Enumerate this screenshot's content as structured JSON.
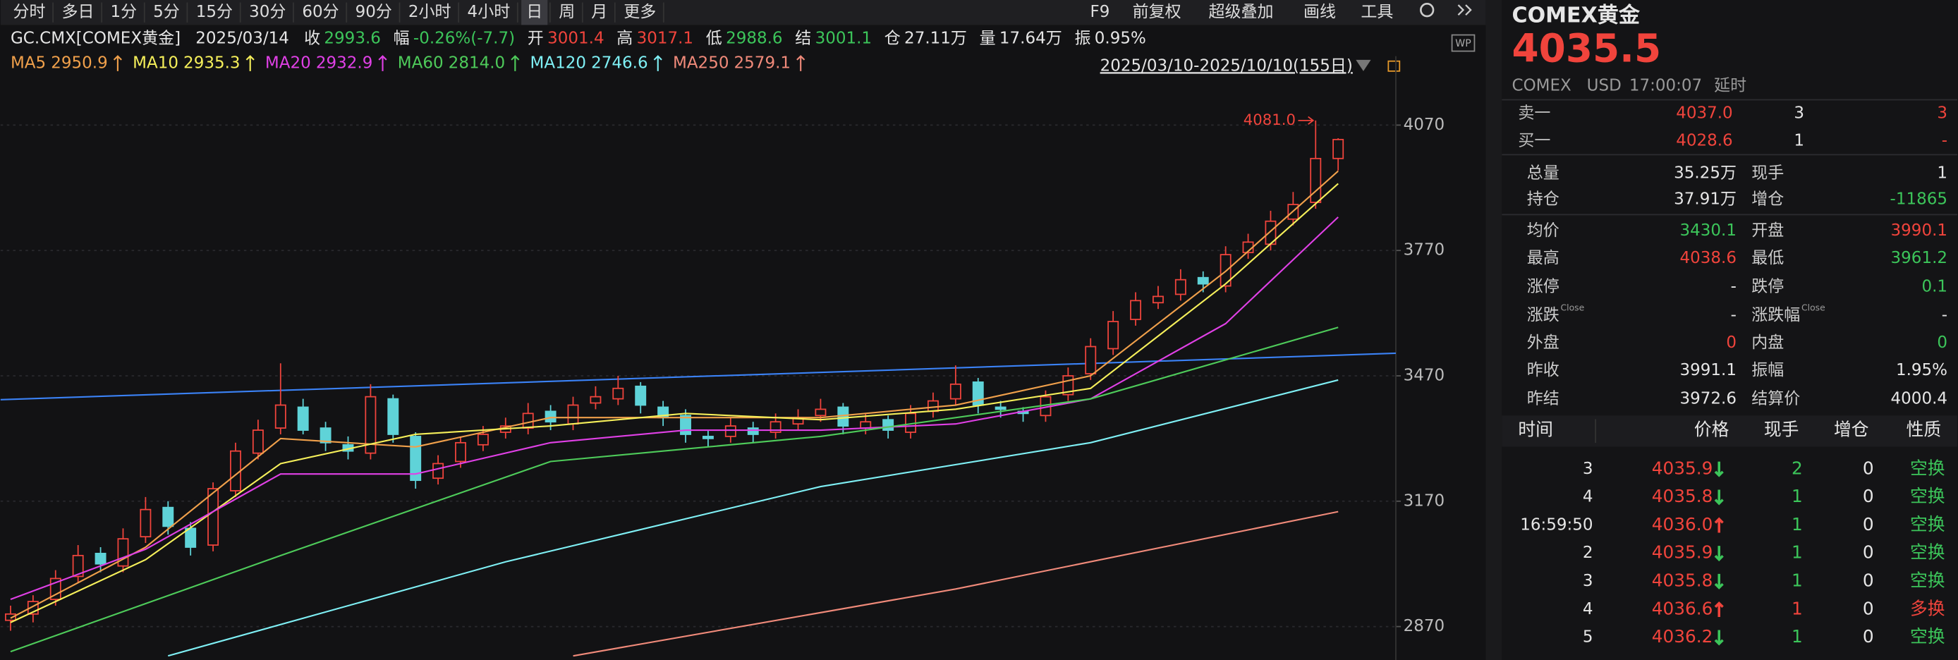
{
  "toolbar": [
    "分时",
    "多日",
    "1分",
    "5分",
    "15分",
    "30分",
    "60分",
    "90分",
    "2小时",
    "4小时",
    "日",
    "周",
    "月",
    "更多"
  ],
  "toolbar_active": "日",
  "right_tools": [
    "F9",
    "前复权",
    "超级叠加",
    "画线",
    "工具"
  ],
  "info": {
    "symbol": "GC.CMX[COMEX黄金]",
    "date": "2025/03/14",
    "fields": [
      {
        "label": "收",
        "value": "2993.6",
        "color": "#3cc55a"
      },
      {
        "label": "幅",
        "value": "-0.26%(-7.7)",
        "color": "#3cc55a"
      },
      {
        "label": "开",
        "value": "3001.4",
        "color": "#f0443c"
      },
      {
        "label": "高",
        "value": "3017.1",
        "color": "#f0443c"
      },
      {
        "label": "低",
        "value": "2988.6",
        "color": "#3cc55a"
      },
      {
        "label": "结",
        "value": "3001.1",
        "color": "#3cc55a"
      },
      {
        "label": "仓",
        "value": "27.11万",
        "color": "#e6e6e6"
      },
      {
        "label": "量",
        "value": "17.64万",
        "color": "#e6e6e6"
      },
      {
        "label": "振",
        "value": "0.95%",
        "color": "#e6e6e6"
      }
    ]
  },
  "ma_legend": [
    {
      "name": "MA5",
      "value": "2950.9",
      "color": "#f0a04b"
    },
    {
      "name": "MA10",
      "value": "2935.3",
      "color": "#f5ef5a"
    },
    {
      "name": "MA20",
      "value": "2932.9",
      "color": "#e040e6"
    },
    {
      "name": "MA60",
      "value": "2814.0",
      "color": "#4ecb5a"
    },
    {
      "name": "MA120",
      "value": "2746.6",
      "color": "#7ff0f5"
    },
    {
      "name": "MA250",
      "value": "2579.1",
      "color": "#f08a7a"
    }
  ],
  "range_label": "2025/03/10-2025/10/10(155日)",
  "chart_data": {
    "type": "candlestick",
    "open": [
      2885,
      2900,
      2935,
      2990,
      3045,
      3015,
      3085,
      3155,
      3105,
      3065,
      3195,
      3285,
      3345,
      3395,
      3345,
      3305,
      3285,
      3415,
      3325,
      3225,
      3265,
      3305,
      3335,
      3345,
      3385,
      3355,
      3405,
      3415,
      3445,
      3395,
      3375,
      3325,
      3325,
      3345,
      3335,
      3355,
      3375,
      3395,
      3345,
      3365,
      3335,
      3385,
      3415,
      3455,
      3395,
      3385,
      3375,
      3425,
      3475,
      3535,
      3605,
      3645,
      3665,
      3705,
      3685,
      3765,
      3785,
      3845,
      3885,
      3990.1
    ],
    "high": [
      2920,
      2945,
      3005,
      3065,
      3060,
      3105,
      3180,
      3170,
      3120,
      3215,
      3310,
      3365,
      3500,
      3415,
      3360,
      3325,
      3450,
      3425,
      3335,
      3280,
      3325,
      3350,
      3370,
      3405,
      3400,
      3420,
      3445,
      3470,
      3455,
      3410,
      3390,
      3340,
      3370,
      3360,
      3380,
      3390,
      3415,
      3405,
      3380,
      3375,
      3400,
      3430,
      3495,
      3465,
      3410,
      3395,
      3435,
      3490,
      3560,
      3625,
      3670,
      3685,
      3725,
      3720,
      3780,
      3810,
      3865,
      3910,
      4081,
      4038.6
    ],
    "low": [
      2860,
      2880,
      2920,
      2975,
      3000,
      3000,
      3070,
      3090,
      3040,
      3050,
      3180,
      3270,
      3330,
      3330,
      3290,
      3270,
      3270,
      3310,
      3200,
      3210,
      3250,
      3290,
      3320,
      3330,
      3340,
      3340,
      3390,
      3400,
      3380,
      3350,
      3310,
      3300,
      3310,
      3310,
      3320,
      3340,
      3360,
      3330,
      3330,
      3320,
      3320,
      3370,
      3400,
      3380,
      3370,
      3360,
      3360,
      3410,
      3460,
      3520,
      3590,
      3630,
      3650,
      3670,
      3670,
      3750,
      3770,
      3830,
      3870,
      3961.2
    ],
    "close": [
      2900,
      2930,
      2985,
      3040,
      3020,
      3080,
      3150,
      3110,
      3060,
      3200,
      3290,
      3340,
      3400,
      3340,
      3310,
      3290,
      3420,
      3330,
      3220,
      3260,
      3310,
      3330,
      3350,
      3380,
      3360,
      3400,
      3420,
      3440,
      3400,
      3370,
      3330,
      3320,
      3350,
      3330,
      3360,
      3370,
      3390,
      3350,
      3360,
      3340,
      3380,
      3410,
      3450,
      3400,
      3390,
      3380,
      3420,
      3470,
      3540,
      3600,
      3650,
      3660,
      3700,
      3690,
      3760,
      3790,
      3840,
      3880,
      3990,
      4035.5
    ],
    "up_color": "#f0443c",
    "down_color": "#5fd3d8",
    "ylim": [
      2790,
      4235
    ],
    "yticks": [
      2870,
      3170,
      3470,
      3770,
      4070
    ],
    "grid": true,
    "high_label": "4081.0",
    "high_index": 58,
    "trendline": {
      "color": "#3b82f6",
      "values": [
        3413,
        3524
      ]
    },
    "series": [
      {
        "name": "MA5",
        "color": "#f0a04b",
        "x": [
          0,
          6,
          12,
          18,
          24,
          30,
          36,
          42,
          48,
          54,
          59
        ],
        "values": [
          2890,
          3060,
          3320,
          3300,
          3370,
          3370,
          3370,
          3400,
          3470,
          3720,
          3960
        ]
      },
      {
        "name": "MA10",
        "color": "#f5ef5a",
        "x": [
          0,
          6,
          12,
          18,
          24,
          30,
          36,
          42,
          48,
          54,
          59
        ],
        "values": [
          2880,
          3030,
          3260,
          3330,
          3350,
          3380,
          3365,
          3390,
          3440,
          3690,
          3930
        ]
      },
      {
        "name": "MA20",
        "color": "#e040e6",
        "x": [
          0,
          6,
          12,
          18,
          24,
          30,
          36,
          42,
          48,
          54,
          59
        ],
        "values": [
          2935,
          3055,
          3235,
          3235,
          3310,
          3340,
          3340,
          3355,
          3415,
          3595,
          3850
        ]
      },
      {
        "name": "MA60",
        "color": "#4ecb5a",
        "x": [
          0,
          12,
          24,
          36,
          48,
          59
        ],
        "values": [
          2810,
          3040,
          3265,
          3325,
          3415,
          3586
        ]
      },
      {
        "name": "MA120",
        "color": "#7ff0f5",
        "x": [
          7,
          22,
          36,
          48,
          59
        ],
        "values": [
          2800,
          3025,
          3205,
          3310,
          3460
        ]
      },
      {
        "name": "MA250",
        "color": "#f08a7a",
        "x": [
          25,
          42,
          59
        ],
        "values": [
          2800,
          2960,
          3145
        ]
      }
    ]
  },
  "panel": {
    "title": "COMEX黄金",
    "price": "4035.5",
    "sub": [
      "COMEX",
      "USD",
      "17:00:07",
      "延时"
    ],
    "book": [
      {
        "label": "卖一",
        "price": "4037.0",
        "vol": "3",
        "chg": "3"
      },
      {
        "label": "买一",
        "price": "4028.6",
        "vol": "1",
        "chg": "-"
      }
    ],
    "stats": [
      {
        "l": "总量",
        "v": "35.25万",
        "c": "#e6e6e6",
        "l2": "现手",
        "v2": "1",
        "c2": "#e6e6e6"
      },
      {
        "l": "持仓",
        "v": "37.91万",
        "c": "#e6e6e6",
        "l2": "增仓",
        "v2": "-11865",
        "c2": "#3cc55a"
      },
      {
        "l": "均价",
        "v": "3430.1",
        "c": "#3cc55a",
        "l2": "开盘",
        "v2": "3990.1",
        "c2": "#f0443c"
      },
      {
        "l": "最高",
        "v": "4038.6",
        "c": "#f0443c",
        "l2": "最低",
        "v2": "3961.2",
        "c2": "#3cc55a"
      },
      {
        "l": "涨停",
        "v": "-",
        "c": "#e6e6e6",
        "l2": "跌停",
        "v2": "0.1",
        "c2": "#3cc55a"
      },
      {
        "l": "涨跌",
        "sup": "Close",
        "v": "-",
        "c": "#e6e6e6",
        "l2": "涨跌幅",
        "sup2": "Close",
        "v2": "-",
        "c2": "#e6e6e6"
      },
      {
        "l": "外盘",
        "v": "0",
        "c": "#f0443c",
        "l2": "内盘",
        "v2": "0",
        "c2": "#3cc55a"
      },
      {
        "l": "昨收",
        "v": "3991.1",
        "c": "#e6e6e6",
        "l2": "振幅",
        "v2": "1.95%",
        "c2": "#e6e6e6"
      },
      {
        "l": "昨结",
        "v": "3972.6",
        "c": "#e6e6e6",
        "l2": "结算价",
        "v2": "4000.4",
        "c2": "#e6e6e6"
      }
    ],
    "trade_header": [
      "时间",
      "价格",
      "现手",
      "增仓",
      "性质"
    ],
    "trades": [
      {
        "time": "3",
        "price": "4035.9",
        "dir": "down",
        "vol": "2",
        "oi": "0",
        "kind": "空换",
        "color": "#3cc55a"
      },
      {
        "time": "4",
        "price": "4035.8",
        "dir": "down",
        "vol": "1",
        "oi": "0",
        "kind": "空换",
        "color": "#3cc55a"
      },
      {
        "time": "16:59:50",
        "price": "4036.0",
        "dir": "up",
        "vol": "1",
        "oi": "0",
        "kind": "空换",
        "color": "#3cc55a"
      },
      {
        "time": "2",
        "price": "4035.9",
        "dir": "down",
        "vol": "1",
        "oi": "0",
        "kind": "空换",
        "color": "#3cc55a"
      },
      {
        "time": "3",
        "price": "4035.8",
        "dir": "down",
        "vol": "1",
        "oi": "0",
        "kind": "空换",
        "color": "#3cc55a"
      },
      {
        "time": "4",
        "price": "4036.6",
        "dir": "up",
        "vol": "1",
        "oi": "0",
        "kind": "多换",
        "color": "#f0443c"
      },
      {
        "time": "5",
        "price": "4036.2",
        "dir": "down",
        "vol": "1",
        "oi": "0",
        "kind": "空换",
        "color": "#3cc55a"
      }
    ]
  }
}
